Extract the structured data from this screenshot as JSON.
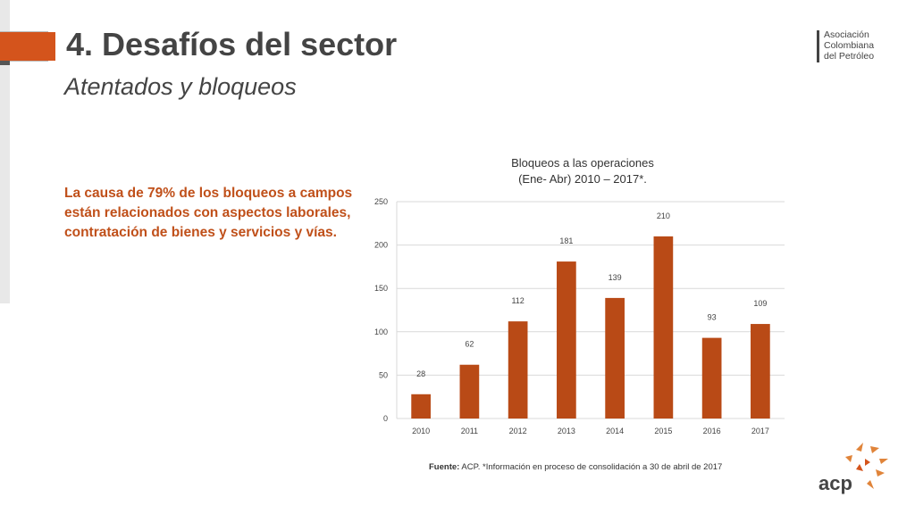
{
  "header": {
    "title": "4. Desafíos del sector",
    "subtitle": "Atentados y bloqueos"
  },
  "org_logo": {
    "line1": "Asociación",
    "line2": "Colombiana",
    "line3": "del Petróleo"
  },
  "body": {
    "text": "La causa de 79% de los bloqueos a campos están relacionados con aspectos laborales, contratación de bienes y servicios y vías."
  },
  "footer": {
    "source_label": "Fuente:",
    "source_text": " ACP. *Información en proceso de consolidación a 30 de abril de 2017"
  },
  "acp_logo_text": "acp",
  "colors": {
    "accent": "#d4541c",
    "bar": "#b94a16",
    "text": "#444444",
    "body_text": "#c0501a",
    "grid": "#d9d9d9"
  },
  "chart_data": {
    "type": "bar",
    "title": "Bloqueos a las operaciones\n(Ene- Abr) 2010 – 2017*.",
    "title_line1": "Bloqueos a las operaciones",
    "title_line2": "(Ene- Abr) 2010 – 2017*.",
    "categories": [
      "2010",
      "2011",
      "2012",
      "2013",
      "2014",
      "2015",
      "2016",
      "2017"
    ],
    "values": [
      28,
      62,
      112,
      181,
      139,
      210,
      93,
      109
    ],
    "ylim": [
      0,
      250
    ],
    "yticks": [
      0,
      50,
      100,
      150,
      200,
      250
    ],
    "grid": true,
    "xlabel": "",
    "ylabel": ""
  }
}
